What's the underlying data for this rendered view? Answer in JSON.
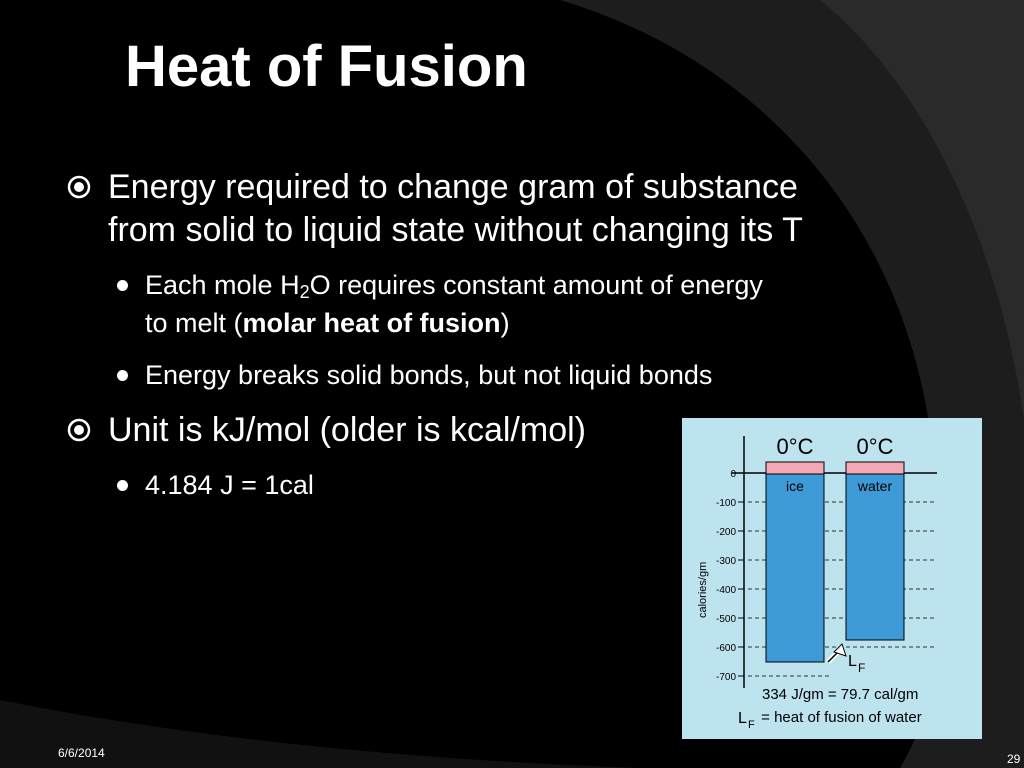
{
  "slide": {
    "title": "Heat of Fusion",
    "bullets": [
      {
        "text_line1": "Energy required to change gram of substance",
        "text_line2": "from solid to liquid state without changing its T"
      },
      {
        "text": "Unit is kJ/mol (older is kcal/mol)"
      }
    ],
    "sub_bullets": {
      "b1_pre": "Each mole H",
      "b1_sub": "2",
      "b1_post": "O requires constant amount of energy",
      "b1_line2_pre": "to melt (",
      "b1_line2_bold": "molar heat of fusion",
      "b1_line2_post": ")",
      "b2": "Energy breaks solid bonds, but not liquid bonds",
      "b3": "4.184 J = 1cal"
    },
    "footer": {
      "date": "6/6/2014",
      "page": "29"
    }
  },
  "figure": {
    "col1_temp": "0°C",
    "col2_temp": "0°C",
    "col1_label": "ice",
    "col2_label": "water",
    "y_axis_label": "calories/gm",
    "y_ticks": [
      "0",
      "-100",
      "-200",
      "-300",
      "-400",
      "-500",
      "-600",
      "-700"
    ],
    "lf_label_L": "L",
    "lf_label_F": "F",
    "caption_line1": "334 J/gm = 79.7 cal/gm",
    "caption_line2_L": "L",
    "caption_line2_F": "F",
    "caption_line2_rest": " = heat of fusion of water",
    "colors": {
      "background": "#bde3ee",
      "bar": "#3d9ad6",
      "cap": "#f4a7b4"
    }
  }
}
